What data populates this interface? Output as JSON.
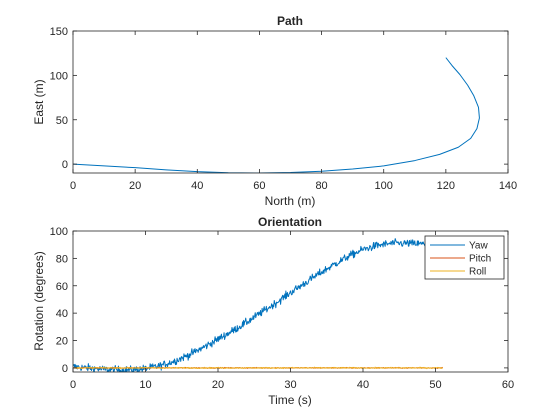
{
  "chart_data": [
    {
      "type": "line",
      "title": "Path",
      "xlabel": "North (m)",
      "ylabel": "East (m)",
      "xlim": [
        0,
        140
      ],
      "ylim": [
        -10,
        150
      ],
      "xticks": [
        0,
        20,
        40,
        60,
        80,
        100,
        120,
        140
      ],
      "yticks": [
        0,
        50,
        100,
        150
      ],
      "grid": false,
      "series": [
        {
          "color": "#0072BD",
          "x": [
            0,
            10,
            20,
            30,
            40,
            50,
            60,
            70,
            80,
            90,
            100,
            110,
            118,
            124,
            128,
            130,
            130.8,
            130.5,
            129,
            127,
            124.5,
            122,
            120
          ],
          "y": [
            0,
            -2,
            -4,
            -6.5,
            -8.5,
            -9.7,
            -10,
            -9.4,
            -8,
            -5.5,
            -2,
            4,
            11,
            19,
            29,
            40,
            52,
            64,
            77,
            89,
            101,
            111,
            120
          ]
        }
      ]
    },
    {
      "type": "line",
      "title": "Orientation",
      "xlabel": "Time (s)",
      "ylabel": "Rotation (degrees)",
      "xlim": [
        0,
        60
      ],
      "ylim": [
        -3,
        100
      ],
      "xticks": [
        0,
        10,
        20,
        30,
        40,
        50,
        60
      ],
      "yticks": [
        0,
        20,
        40,
        60,
        80,
        100
      ],
      "grid": false,
      "legend": "top-right",
      "series": [
        {
          "name": "Yaw",
          "color": "#0072BD",
          "noise": 2,
          "x": [
            0,
            2,
            4,
            6,
            8,
            10,
            12,
            14,
            16,
            18,
            20,
            22,
            24,
            26,
            28,
            30,
            32,
            34,
            36,
            38,
            40,
            42,
            44,
            46,
            48,
            50,
            51
          ],
          "y": [
            1,
            0,
            -1,
            -1.5,
            -1.5,
            -0.5,
            1.5,
            5,
            9.5,
            15,
            21,
            27,
            33.5,
            40.5,
            47.5,
            55,
            62,
            69,
            75.5,
            81.5,
            86.5,
            89.5,
            91,
            91,
            90.5,
            90.5,
            90.5
          ]
        },
        {
          "name": "Pitch",
          "color": "#D95319",
          "noise": 0.25,
          "x": [
            0,
            51
          ],
          "y": [
            0,
            0
          ]
        },
        {
          "name": "Roll",
          "color": "#EDB120",
          "noise": 0.3,
          "x": [
            0,
            51
          ],
          "y": [
            0,
            0
          ]
        }
      ]
    }
  ]
}
